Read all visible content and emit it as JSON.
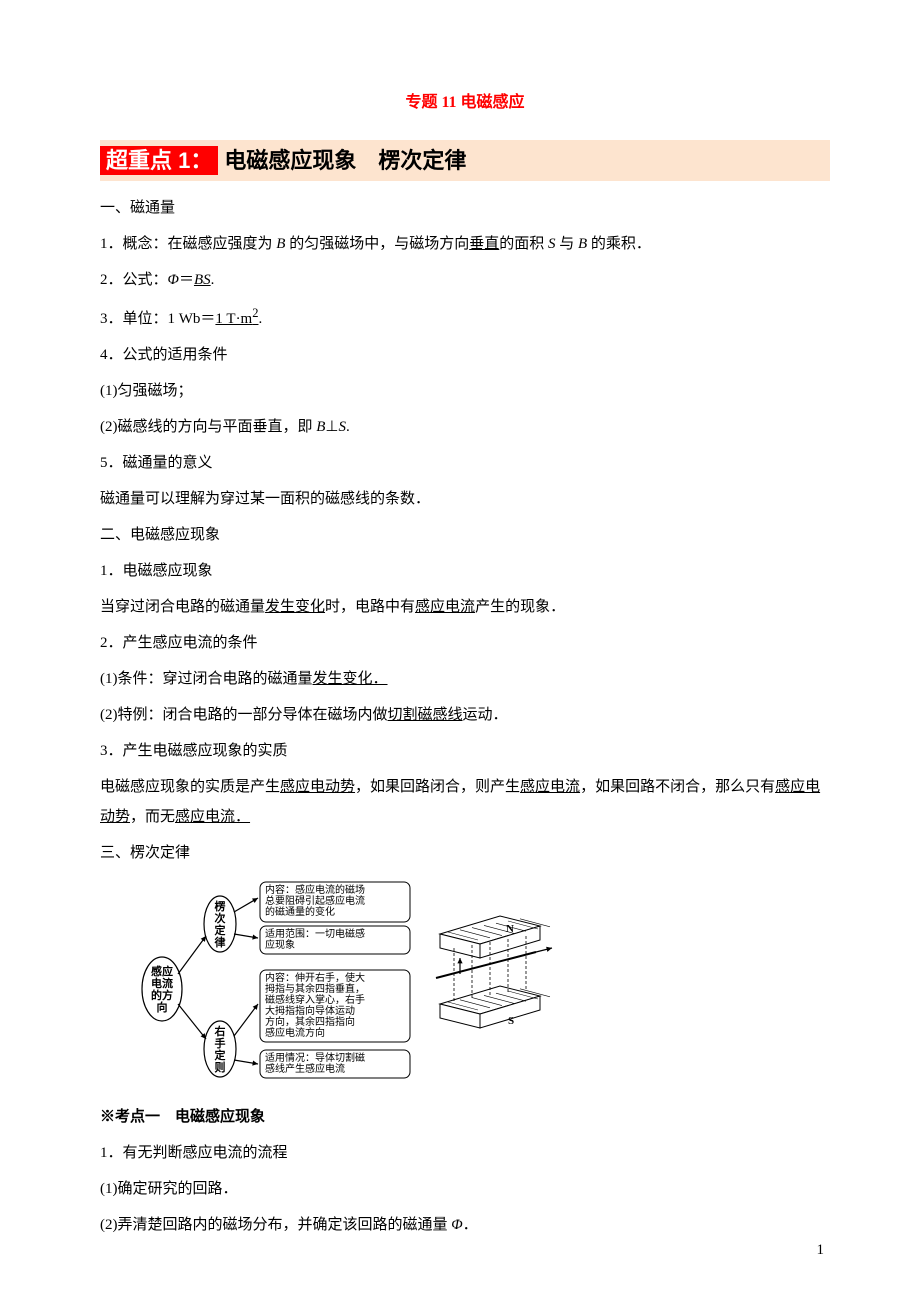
{
  "doc_title": "专题 11 电磁感应",
  "heading": {
    "badge": "超重点 1：",
    "rest": "电磁感应现象　楞次定律"
  },
  "lines": [
    {
      "html": "一、磁通量"
    },
    {
      "html": "1．概念：在磁感应强度为 <span class='italic'>B</span> 的匀强磁场中，与磁场方向<span class='underline'>垂直</span>的面积 <span class='italic'>S</span> 与 <span class='italic'>B</span> 的乘积．"
    },
    {
      "html": "2．公式：<span class='italic'>Φ</span>＝<span class='underline italic'>BS</span>."
    },
    {
      "html": "3．单位：1 Wb＝<span class='underline'>1 T·m<sup>2</sup></span>."
    },
    {
      "html": "4．公式的适用条件"
    },
    {
      "html": "(1)匀强磁场；"
    },
    {
      "html": "(2)磁感线的方向与平面垂直，即 <span class='italic'>B</span>⊥<span class='italic'>S</span>."
    },
    {
      "html": "5．磁通量的意义"
    },
    {
      "html": "磁通量可以理解为穿过某一面积的磁感线的条数．"
    },
    {
      "html": "二、电磁感应现象"
    },
    {
      "html": "1．电磁感应现象"
    },
    {
      "html": "当穿过闭合电路的磁通量<span class='underline'>发生变化</span>时，电路中有<span class='underline'>感应电流</span>产生的现象．"
    },
    {
      "html": "2．产生感应电流的条件"
    },
    {
      "html": "(1)条件：穿过闭合电路的磁通量<span class='underline'>发生变化．</span>"
    },
    {
      "html": "(2)特例：闭合电路的一部分导体在磁场内做<span class='underline'>切割磁感线</span>运动．"
    },
    {
      "html": "3．产生电磁感应现象的实质"
    },
    {
      "html": "电磁感应现象的实质是产生<span class='underline'>感应电动势</span>，如果回路闭合，则产生<span class='underline'>感应电流</span>，如果回路不闭合，那么只有<span class='underline'>感应电动势</span>，而无<span class='underline'>感应电流．</span>"
    },
    {
      "html": "三、楞次定律"
    }
  ],
  "diagram": {
    "left_root": "感应\n电流\n的方\n向",
    "upper_node": "楞\n次\n定\n律",
    "lower_node": "右\n手\n定\n则",
    "boxes": [
      "内容：感应电流的磁场\n总要阻碍引起感应电流\n的磁通量的变化",
      "适用范围：一切电磁感\n应现象",
      "内容：伸开右手，使大\n拇指与其余四指垂直，\n磁感线穿入掌心，右手\n大拇指指向导体运动\n方向，其余四指指向\n感应电流方向",
      "适用情况：导体切割磁\n感线产生感应电流"
    ],
    "underlined_in_boxes": {
      "0": [
        "阻碍"
      ],
      "2": [
        "运动",
        "方向"
      ]
    },
    "box_border": "#000000",
    "arrow_color": "#000000",
    "font_family": "SimHei",
    "magnet_labels": [
      "N",
      "S"
    ]
  },
  "after_diagram": [
    {
      "html": "<span class='bold'>※考点一　电磁感应现象</span>"
    },
    {
      "html": "1．有无判断感应电流的流程"
    },
    {
      "html": "(1)确定研究的回路．"
    },
    {
      "html": "(2)弄清楚回路内的磁场分布，并确定该回路的磁通量 <span class='italic'>Φ</span>．"
    }
  ],
  "page_number": "1"
}
